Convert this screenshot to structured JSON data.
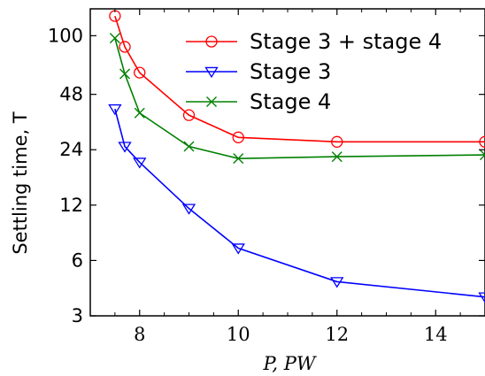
{
  "chart_data": {
    "type": "line",
    "xlabel": "P, PW",
    "ylabel": "Settling time, T",
    "xlim": [
      7.0,
      15.0
    ],
    "ylim": [
      3,
      140
    ],
    "yscale": "log2",
    "xticks": [
      8,
      10,
      12,
      14
    ],
    "yticks": [
      3,
      6,
      12,
      24,
      48,
      100
    ],
    "ytick_labels": [
      "3",
      "6",
      "12",
      "24",
      "48",
      "100"
    ],
    "grid": false,
    "legend_position": "top-right",
    "series": [
      {
        "name": "Stage 3 + stage 4",
        "color": "#ff0000",
        "marker": "circle",
        "x": [
          7.5,
          7.7,
          8.0,
          9.0,
          10.0,
          12.0,
          15.0
        ],
        "y": [
          128,
          87,
          63,
          37,
          28,
          26.5,
          26.5
        ]
      },
      {
        "name": "Stage 3",
        "color": "#0000ff",
        "marker": "triangle-down",
        "x": [
          7.5,
          7.7,
          8.0,
          9.0,
          10.0,
          12.0,
          15.0
        ],
        "y": [
          40,
          25,
          20.5,
          11.5,
          7,
          4.6,
          3.8
        ]
      },
      {
        "name": "Stage 4",
        "color": "#008000",
        "marker": "x",
        "x": [
          7.5,
          7.7,
          8.0,
          9.0,
          10.0,
          12.0,
          15.0
        ],
        "y": [
          97,
          62,
          38,
          25,
          21.5,
          22,
          22.5
        ]
      }
    ]
  }
}
